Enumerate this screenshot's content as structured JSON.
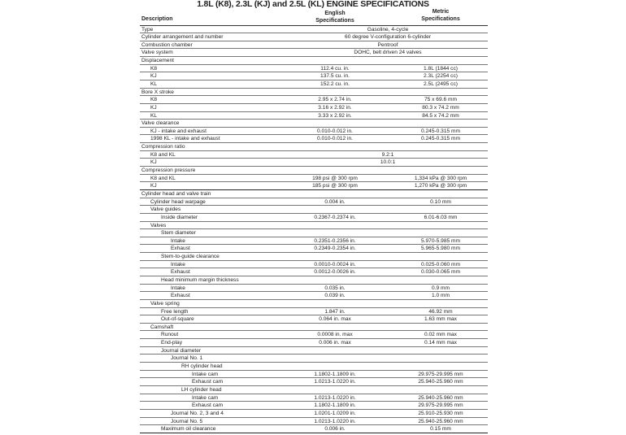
{
  "title": "1.8L (K8), 2.3L (KJ) and 2.5L (KL) ENGINE SPECIFICATIONS",
  "headers": {
    "description": "Description",
    "english_1": "English",
    "english_2": "Specifications",
    "metric_1": "Metric",
    "metric_2": "Specifications"
  },
  "rows": [
    {
      "label": "Type",
      "level": 0,
      "span": "Gasoline, 4-cycle"
    },
    {
      "label": "Cylinder arrangement and number",
      "level": 0,
      "span": "60 degree V-configuration 6-cylinder"
    },
    {
      "label": "Combustion chamber",
      "level": 0,
      "span": "Pentroof"
    },
    {
      "label": "Valve system",
      "level": 0,
      "span": "DOHC, belt driven 24 valves"
    },
    {
      "label": "Displacement",
      "level": 0
    },
    {
      "label": "K8",
      "level": 1,
      "english": "112.4 cu. in.",
      "metric": "1.8L (1844 cc)"
    },
    {
      "label": "KJ",
      "level": 1,
      "english": "137.5 cu. in.",
      "metric": "2.3L (2254 cc)"
    },
    {
      "label": "KL",
      "level": 1,
      "english": "152.2 cu. in.",
      "metric": "2.5L (2495 cc)"
    },
    {
      "label": "Bore X stroke",
      "level": 0
    },
    {
      "label": "K8",
      "level": 1,
      "english": "2.95 x 2.74 in.",
      "metric": "75 x 69.6 mm"
    },
    {
      "label": "KJ",
      "level": 1,
      "english": "3.16 x 2.92 in.",
      "metric": "80.3 x 74.2 mm"
    },
    {
      "label": "KL",
      "level": 1,
      "english": "3.33 x 2.92 in.",
      "metric": "84.5 x 74.2 mm"
    },
    {
      "label": "Valve clearance",
      "level": 0
    },
    {
      "label": "KJ - intake and exhaust",
      "level": 1,
      "english": "0.010-0.012 in.",
      "metric": "0.245-0.315 mm"
    },
    {
      "label": "1998 KL - intake and exhaust",
      "level": 1,
      "english": "0.010-0.012 in.",
      "metric": "0.245-0.315 mm"
    },
    {
      "label": "Compression ratio",
      "level": 0
    },
    {
      "label": "K8 and KL",
      "level": 1,
      "span": "9.2:1"
    },
    {
      "label": "KJ",
      "level": 1,
      "span": "10.0:1"
    },
    {
      "label": "Compression pressure",
      "level": 0
    },
    {
      "label": "K8 and KL",
      "level": 1,
      "english": "198 psi @ 300 rpm",
      "metric": "1,334 kPa @ 300 rpm"
    },
    {
      "label": "KJ",
      "level": 1,
      "english": "185 psi @ 300 rpm",
      "metric": "1,270 kPa @ 300 rpm",
      "thick": true
    },
    {
      "label": "Cylinder head and valve train",
      "level": 0
    },
    {
      "label": "Cylinder head warpage",
      "level": 1,
      "english": "0.004 in.",
      "metric": "0.10 mm"
    },
    {
      "label": "Valve guides",
      "level": 1
    },
    {
      "label": "Inside diameter",
      "level": 2,
      "english": "0.2367-0.2374 in.",
      "metric": "6.01-6.03 mm"
    },
    {
      "label": "Valves",
      "level": 1
    },
    {
      "label": "Stem diameter",
      "level": 2
    },
    {
      "label": "Intake",
      "level": 3,
      "english": "0.2351-0.2356 in.",
      "metric": "5.970-5.985 mm"
    },
    {
      "label": "Exhaust",
      "level": 3,
      "english": "0.2349-0.2354 in.",
      "metric": "5.965-5.980 mm"
    },
    {
      "label": "Stem-to-guide clearance",
      "level": 2
    },
    {
      "label": "Intake",
      "level": 3,
      "english": "0.0010-0.0024 in.",
      "metric": "0.025-0.060 mm"
    },
    {
      "label": "Exhaust",
      "level": 3,
      "english": "0.0012-0.0026 in.",
      "metric": "0.030-0.065 mm"
    },
    {
      "label": "Head minimum margin thickness",
      "level": 2
    },
    {
      "label": "Intake",
      "level": 3,
      "english": "0.035 in.",
      "metric": "0.9 mm"
    },
    {
      "label": "Exhaust",
      "level": 3,
      "english": "0.039 in.",
      "metric": "1.0 mm"
    },
    {
      "label": "Valve spring",
      "level": 1
    },
    {
      "label": "Free length",
      "level": 2,
      "english": "1.847 in.",
      "metric": "46.92 mm"
    },
    {
      "label": "Out-of-square",
      "level": 2,
      "english": "0.064 in. max",
      "metric": "1.63 mm max"
    },
    {
      "label": "Camshaft",
      "level": 1
    },
    {
      "label": "Runout",
      "level": 2,
      "english": "0.0008 in. max",
      "metric": "0.02 mm max"
    },
    {
      "label": "End-play",
      "level": 2,
      "english": "0.006 in. max",
      "metric": "0.14 mm max"
    },
    {
      "label": "Journal diameter",
      "level": 2
    },
    {
      "label": "Journal No. 1",
      "level": 3
    },
    {
      "label": "RH cylinder head",
      "level": 4
    },
    {
      "label": "Intake cam",
      "level": 5,
      "english": "1.1802-1.1809 in.",
      "metric": "29.975-29.995 mm"
    },
    {
      "label": "Exhaust cam",
      "level": 5,
      "english": "1.0213-1.0220 in.",
      "metric": "25.940-25.960 mm"
    },
    {
      "label": "LH cylinder head",
      "level": 4
    },
    {
      "label": "Intake cam",
      "level": 5,
      "english": "1.0213-1.0220 in.",
      "metric": "25.940-25.960 mm"
    },
    {
      "label": "Exhaust cam",
      "level": 5,
      "english": "1.1802-1.1809 in.",
      "metric": "29.975-29.995 mm"
    },
    {
      "label": "Journal No. 2, 3 and 4",
      "level": 3,
      "english": "1.0201-1.0209 in.",
      "metric": "25.910-25.930 mm"
    },
    {
      "label": "Journal No. 5",
      "level": 3,
      "english": "1.0213-1.0220 in.",
      "metric": "25.940-25.960 mm"
    },
    {
      "label": "Maximum oil clearance",
      "level": 2,
      "english": "0.006 in.",
      "metric": "0.15 mm",
      "thick": true
    }
  ]
}
